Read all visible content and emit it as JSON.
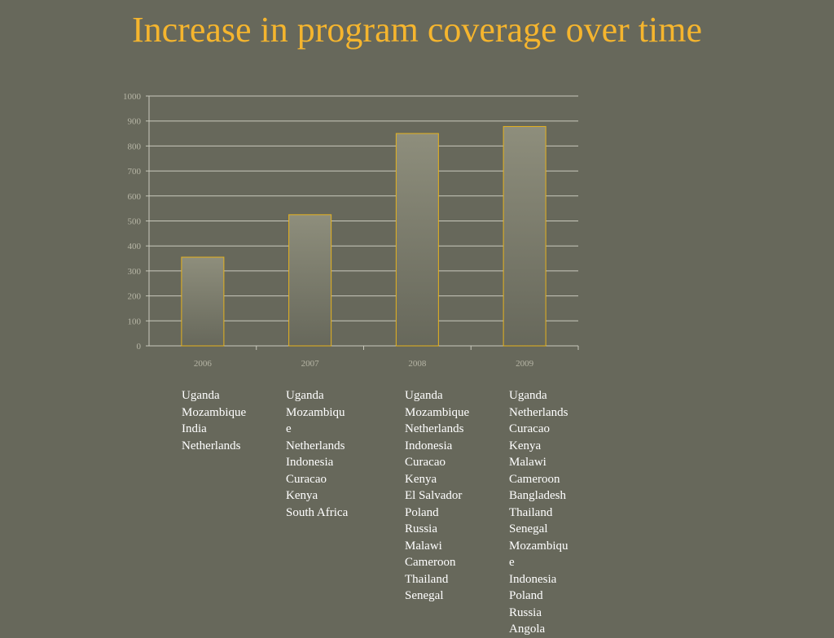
{
  "slide": {
    "title": "Increase in program coverage over time"
  },
  "chart_data": {
    "type": "bar",
    "title": "",
    "xlabel": "",
    "ylabel": "",
    "categories": [
      "2006",
      "2007",
      "2008",
      "2009"
    ],
    "values": [
      355,
      525,
      850,
      878
    ],
    "ylim": [
      0,
      1000
    ],
    "yticks": [
      0,
      100,
      200,
      300,
      400,
      500,
      600,
      700,
      800,
      900,
      1000
    ],
    "grid": true,
    "legend": "none"
  },
  "colors": {
    "background": "#67685b",
    "title": "#f5b52e",
    "bar_top": "#8e8e7c",
    "bar_bottom": "#67685b",
    "bar_outline": "#e6b21e"
  },
  "country_lists": [
    {
      "year": "2006",
      "lines": [
        "Uganda",
        "Mozambique",
        "India",
        "Netherlands"
      ]
    },
    {
      "year": "2007",
      "lines": [
        "Uganda",
        "Mozambiqu",
        "e",
        "Netherlands",
        "Indonesia",
        "Curacao",
        "Kenya",
        "South Africa"
      ]
    },
    {
      "year": "2008",
      "lines": [
        "Uganda",
        "Mozambique",
        "Netherlands",
        "Indonesia",
        "Curacao",
        "Kenya",
        "El Salvador",
        "Poland",
        "Russia",
        "Malawi",
        "Cameroon",
        "Thailand",
        "Senegal"
      ]
    },
    {
      "year": "2009",
      "lines": [
        "Uganda",
        "Netherlands",
        "Curacao",
        "Kenya",
        "Malawi",
        "Cameroon",
        "Bangladesh",
        "Thailand",
        "Senegal",
        "Mozambiqu",
        "e",
        "Indonesia",
        "Poland",
        "Russia",
        "Angola"
      ]
    }
  ]
}
